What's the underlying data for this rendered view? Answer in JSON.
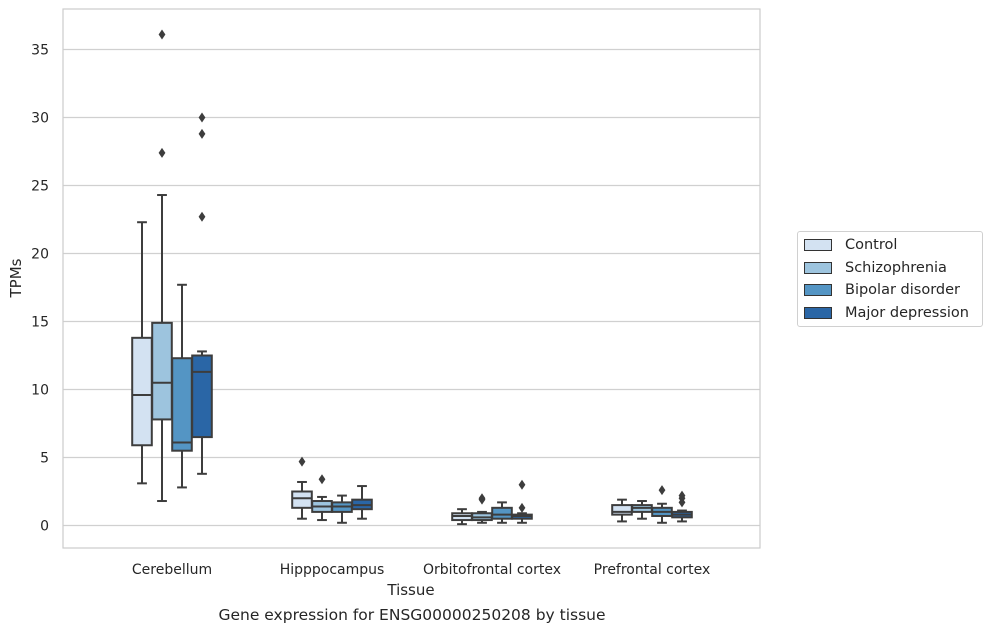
{
  "caption": "Gene expression for ENSG00000250208 by tissue",
  "chart_data": {
    "type": "box",
    "xlabel": "Tissue",
    "ylabel": "TPMs",
    "ylim": [
      -1.6,
      37.8
    ],
    "yticks": [
      0,
      5,
      10,
      15,
      20,
      25,
      30,
      35
    ],
    "grid": "horizontal",
    "legend_position": "right",
    "categories": [
      "Cerebellum",
      "Hipppocampus",
      "Orbitofrontal cortex",
      "Prefrontal cortex"
    ],
    "series": [
      {
        "name": "Control",
        "color": "#d3e2f2",
        "boxes": [
          {
            "whisker_low": 3.1,
            "q1": 5.9,
            "median": 9.6,
            "q3": 13.8,
            "whisker_high": 22.3,
            "outliers": []
          },
          {
            "whisker_low": 0.5,
            "q1": 1.3,
            "median": 2.0,
            "q3": 2.5,
            "whisker_high": 3.2,
            "outliers": [
              4.7
            ]
          },
          {
            "whisker_low": 0.1,
            "q1": 0.4,
            "median": 0.7,
            "q3": 0.9,
            "whisker_high": 1.2,
            "outliers": []
          },
          {
            "whisker_low": 0.3,
            "q1": 0.8,
            "median": 1.0,
            "q3": 1.5,
            "whisker_high": 1.9,
            "outliers": []
          }
        ]
      },
      {
        "name": "Schizophrenia",
        "color": "#9dc4de",
        "boxes": [
          {
            "whisker_low": 1.8,
            "q1": 7.8,
            "median": 10.5,
            "q3": 14.9,
            "whisker_high": 24.3,
            "outliers": [
              27.4,
              36.1
            ]
          },
          {
            "whisker_low": 0.4,
            "q1": 1.0,
            "median": 1.4,
            "q3": 1.8,
            "whisker_high": 2.1,
            "outliers": [
              3.4
            ]
          },
          {
            "whisker_low": 0.2,
            "q1": 0.4,
            "median": 0.6,
            "q3": 0.9,
            "whisker_high": 1.0,
            "outliers": [
              1.9,
              2.0
            ]
          },
          {
            "whisker_low": 0.5,
            "q1": 1.0,
            "median": 1.3,
            "q3": 1.5,
            "whisker_high": 1.8,
            "outliers": []
          }
        ]
      },
      {
        "name": "Bipolar disorder",
        "color": "#5495c4",
        "boxes": [
          {
            "whisker_low": 2.8,
            "q1": 5.5,
            "median": 6.1,
            "q3": 12.3,
            "whisker_high": 17.7,
            "outliers": []
          },
          {
            "whisker_low": 0.2,
            "q1": 1.0,
            "median": 1.4,
            "q3": 1.7,
            "whisker_high": 2.2,
            "outliers": []
          },
          {
            "whisker_low": 0.2,
            "q1": 0.5,
            "median": 0.8,
            "q3": 1.3,
            "whisker_high": 1.7,
            "outliers": []
          },
          {
            "whisker_low": 0.2,
            "q1": 0.7,
            "median": 1.0,
            "q3": 1.3,
            "whisker_high": 1.6,
            "outliers": [
              2.6
            ]
          }
        ]
      },
      {
        "name": "Major depression",
        "color": "#2a66a6",
        "boxes": [
          {
            "whisker_low": 3.8,
            "q1": 6.5,
            "median": 11.3,
            "q3": 12.5,
            "whisker_high": 12.8,
            "outliers": [
              22.7,
              28.8,
              30.0
            ]
          },
          {
            "whisker_low": 0.5,
            "q1": 1.2,
            "median": 1.5,
            "q3": 1.9,
            "whisker_high": 2.9,
            "outliers": []
          },
          {
            "whisker_low": 0.2,
            "q1": 0.5,
            "median": 0.7,
            "q3": 0.8,
            "whisker_high": 0.9,
            "outliers": [
              1.3,
              3.0
            ]
          },
          {
            "whisker_low": 0.3,
            "q1": 0.6,
            "median": 0.8,
            "q3": 1.0,
            "whisker_high": 1.1,
            "outliers": [
              1.7,
              2.0,
              2.2
            ]
          }
        ]
      }
    ]
  }
}
